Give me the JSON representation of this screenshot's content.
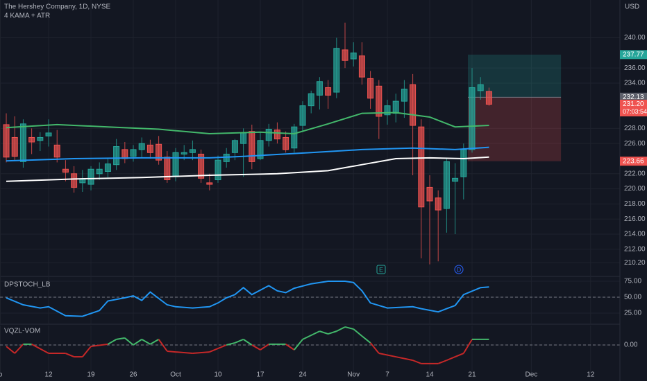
{
  "header": {
    "title": "The Hershey Company, 1D, NYSE",
    "indicator": "4 KAMA + ATR",
    "currency": "USD"
  },
  "chart_data": [
    {
      "type": "candlestick",
      "up_color": "#26a69a",
      "down_color": "#ef5350",
      "open": [
        228.5,
        226.8,
        223.6,
        226.8,
        226.4,
        227.0,
        225.8,
        222.6,
        222.0,
        220.8,
        220.6,
        222.0,
        222.3,
        223.2,
        225.2,
        224.3,
        225.2,
        225.8,
        225.9,
        224.2,
        221.6,
        224.6,
        224.8,
        224.6,
        220.8,
        221.2,
        223.6,
        224.8,
        226.0,
        227.6,
        224.0,
        226.4,
        227.8,
        226.8,
        225.4,
        228.4,
        231.0,
        232.4,
        233.4,
        232.8,
        238.4,
        237.2,
        237.6,
        234.6,
        233.6,
        229.8,
        230.0,
        231.6,
        233.8,
        228.2,
        220.2,
        218.8,
        217.4,
        221.0,
        221.6,
        225.2,
        233.0,
        232.9
      ],
      "high": [
        230.0,
        229.6,
        229.2,
        228.0,
        227.5,
        229.2,
        227.8,
        223.8,
        223.0,
        222.5,
        223.0,
        223.5,
        224.0,
        226.6,
        226.2,
        225.8,
        226.8,
        226.5,
        227.0,
        225.0,
        225.4,
        225.8,
        226.4,
        225.2,
        222.0,
        224.4,
        225.4,
        226.6,
        228.0,
        228.5,
        227.5,
        228.6,
        228.8,
        227.6,
        228.6,
        231.6,
        233.0,
        234.8,
        234.4,
        240.0,
        242.0,
        239.4,
        239.4,
        235.6,
        234.4,
        231.8,
        232.6,
        234.4,
        235.2,
        229.2,
        221.8,
        219.8,
        224.0,
        223.4,
        226.0,
        236.0,
        234.8,
        233.4
      ],
      "low": [
        223.5,
        223.8,
        222.8,
        224.6,
        225.0,
        225.6,
        223.5,
        221.0,
        219.5,
        219.6,
        219.8,
        221.2,
        221.5,
        222.5,
        223.4,
        223.6,
        224.2,
        224.0,
        223.2,
        220.8,
        221.0,
        223.8,
        223.8,
        220.8,
        219.8,
        220.8,
        222.8,
        223.8,
        221.6,
        222.6,
        223.8,
        225.6,
        226.0,
        224.8,
        224.8,
        227.5,
        230.0,
        230.5,
        230.6,
        232.0,
        236.0,
        236.2,
        233.8,
        230.6,
        226.6,
        228.5,
        228.8,
        229.4,
        221.8,
        210.8,
        210.0,
        210.4,
        214.2,
        214.0,
        218.6,
        224.8,
        231.8,
        231.0
      ],
      "close": [
        224.2,
        224.3,
        228.6,
        226.2,
        226.8,
        227.4,
        224.2,
        222.2,
        220.2,
        221.3,
        222.6,
        222.6,
        223.3,
        225.6,
        224.0,
        225.2,
        226.0,
        224.8,
        223.8,
        221.2,
        224.8,
        224.8,
        225.2,
        221.4,
        220.6,
        223.8,
        224.6,
        226.4,
        227.4,
        223.6,
        226.4,
        227.9,
        226.6,
        225.2,
        228.2,
        231.0,
        232.6,
        234.2,
        232.4,
        238.6,
        237.0,
        238.0,
        234.8,
        232.0,
        229.6,
        231.0,
        231.6,
        233.2,
        228.4,
        217.6,
        218.4,
        217.2,
        223.6,
        221.4,
        225.2,
        233.4,
        233.8,
        231.2
      ],
      "overlays": [
        {
          "color": "#ffffff",
          "x": [
            0,
            8,
            16,
            24,
            32,
            38,
            42,
            46,
            50,
            54,
            57
          ],
          "values": [
            221.0,
            221.3,
            221.5,
            221.8,
            222.0,
            222.4,
            223.2,
            224.0,
            224.1,
            224.0,
            224.2
          ]
        },
        {
          "color": "#2196f3",
          "x": [
            0,
            8,
            16,
            24,
            28,
            36,
            42,
            48,
            53,
            57
          ],
          "values": [
            223.7,
            224.0,
            224.1,
            224.1,
            224.3,
            224.8,
            225.2,
            225.4,
            225.2,
            225.5
          ]
        },
        {
          "color": "#43b86b",
          "x": [
            0,
            6,
            12,
            18,
            24,
            30,
            34,
            38,
            42,
            46,
            50,
            53,
            57
          ],
          "values": [
            228.1,
            228.5,
            228.2,
            227.9,
            227.3,
            227.5,
            227.3,
            228.6,
            230.0,
            230.1,
            229.5,
            228.2,
            228.4
          ]
        }
      ],
      "position": {
        "target": 237.77,
        "entry": 232.13,
        "stop": 223.66
      },
      "price_tags": [
        {
          "value": 237.77,
          "color": "#26a69a"
        },
        {
          "value": 232.13,
          "color": "#5d606b"
        },
        {
          "value": 231.2,
          "label": "231.20",
          "countdown": "07:03:54",
          "color": "#ef5350"
        },
        {
          "value": 223.66,
          "color": "#ef5350"
        }
      ],
      "events": [
        {
          "label": "E",
          "color": "#26a69a"
        },
        {
          "label": "D",
          "color": "#2962ff"
        }
      ],
      "xlim": [
        -0.74,
        72.46
      ],
      "xticks": [
        {
          "value": -0.7,
          "label": "p"
        },
        {
          "value": 5,
          "label": "12"
        },
        {
          "value": 10,
          "label": "19"
        },
        {
          "value": 15,
          "label": "26"
        },
        {
          "value": 20,
          "label": "Oct"
        },
        {
          "value": 25,
          "label": "10"
        },
        {
          "value": 30,
          "label": "17"
        },
        {
          "value": 35,
          "label": "24"
        },
        {
          "value": 41,
          "label": "Nov"
        },
        {
          "value": 45,
          "label": "7"
        },
        {
          "value": 50,
          "label": "14"
        },
        {
          "value": 55,
          "label": "21"
        },
        {
          "value": 62,
          "label": "Dec"
        },
        {
          "value": 69,
          "label": "12"
        }
      ],
      "ylim": [
        208.5,
        245
      ],
      "yticks": [
        {
          "value": 240,
          "label": "240.00"
        },
        {
          "value": 236,
          "label": "236.00"
        },
        {
          "value": 234,
          "label": "234.00"
        },
        {
          "value": 228,
          "label": "228.00"
        },
        {
          "value": 226,
          "label": "226.00"
        },
        {
          "value": 222,
          "label": "222.00"
        },
        {
          "value": 220,
          "label": "220.00"
        },
        {
          "value": 218,
          "label": "218.00"
        },
        {
          "value": 216,
          "label": "216.00"
        },
        {
          "value": 214,
          "label": "214.00"
        },
        {
          "value": 212,
          "label": "212.00"
        },
        {
          "value": 210.2,
          "label": "210.20"
        }
      ]
    },
    {
      "type": "line",
      "title": "DPSTOCH_LB",
      "color": "#2196f3",
      "x": [
        0,
        2,
        4,
        5,
        7,
        9,
        11,
        12,
        14,
        15,
        16,
        17,
        19,
        20,
        22,
        24,
        25,
        26,
        27,
        28,
        29,
        31,
        32,
        33,
        34,
        36,
        38,
        40,
        41,
        42,
        43,
        45,
        48,
        49,
        51,
        52,
        53,
        54,
        56,
        57
      ],
      "values": [
        49,
        38,
        33,
        35,
        21,
        20,
        29,
        44,
        49,
        52,
        45,
        58,
        38,
        35,
        33,
        35,
        41,
        49,
        54,
        65,
        54,
        68,
        60,
        57,
        64,
        71,
        75,
        75,
        73,
        60,
        41,
        33,
        35,
        32,
        27,
        32,
        37,
        54,
        65,
        66
      ],
      "reference": 50,
      "xlim": [
        -0.74,
        72.46
      ],
      "ylim": [
        8.7,
        81.5
      ],
      "yticks": [
        {
          "value": 75,
          "label": "75.00"
        },
        {
          "value": 50,
          "label": "50.00"
        },
        {
          "value": 25,
          "label": "25.00"
        }
      ]
    },
    {
      "type": "signed-line",
      "title": "VQZL-VOM",
      "up_color": "#43b86b",
      "down_color": "#c62828",
      "x": [
        0,
        1,
        2,
        3,
        5,
        7,
        8,
        9,
        10,
        12,
        13,
        14,
        15,
        16,
        17,
        18,
        19,
        20,
        22,
        24,
        26,
        27,
        28,
        29,
        30,
        31,
        33,
        34,
        35,
        37,
        38,
        39,
        40,
        41,
        42,
        43,
        44,
        46,
        48,
        49,
        51,
        52,
        53,
        54,
        55,
        57
      ],
      "values": [
        -0.07,
        -0.43,
        0.04,
        0.04,
        -0.43,
        -0.43,
        -0.61,
        -0.61,
        -0.07,
        0.04,
        0.29,
        0.36,
        0,
        0.29,
        0.04,
        0.29,
        -0.32,
        -0.36,
        -0.43,
        -0.36,
        0,
        0.11,
        0.29,
        0,
        -0.25,
        0.04,
        0.04,
        -0.25,
        0.29,
        0.71,
        0.57,
        0.71,
        0.93,
        0.82,
        0.46,
        0.11,
        -0.43,
        -0.61,
        -0.79,
        -0.96,
        -0.96,
        -0.79,
        -0.61,
        -0.43,
        0.29,
        0.29
      ],
      "reference": 0,
      "xlim": [
        -0.74,
        72.46
      ],
      "ylim": [
        -1.5,
        1
      ],
      "yticks": [
        {
          "value": 0,
          "label": "0.00"
        }
      ]
    }
  ]
}
